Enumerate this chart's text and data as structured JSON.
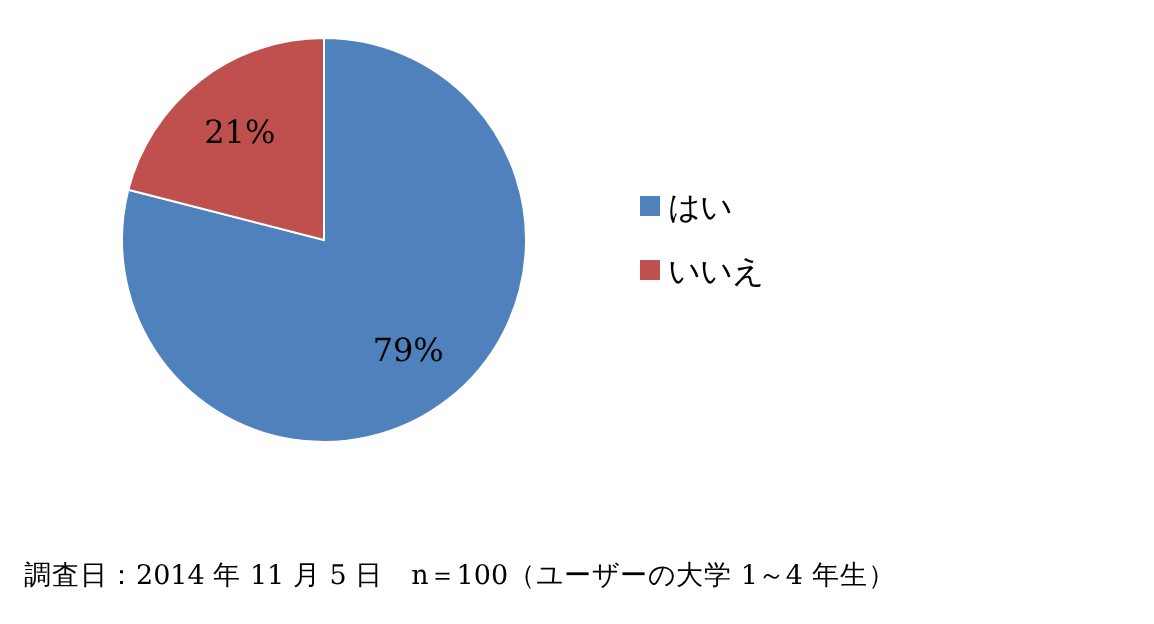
{
  "chart_data": {
    "type": "pie",
    "categories": [
      "はい",
      "いいえ"
    ],
    "values": [
      79,
      21
    ],
    "colors": [
      "#4f81bd",
      "#c0504d"
    ],
    "value_labels": [
      "79%",
      "21%"
    ],
    "legend": "right",
    "annotations": [
      "調査日：2014 年 11 月 5 日　n＝100（ユーザーの大学 1～4 年生）"
    ]
  }
}
